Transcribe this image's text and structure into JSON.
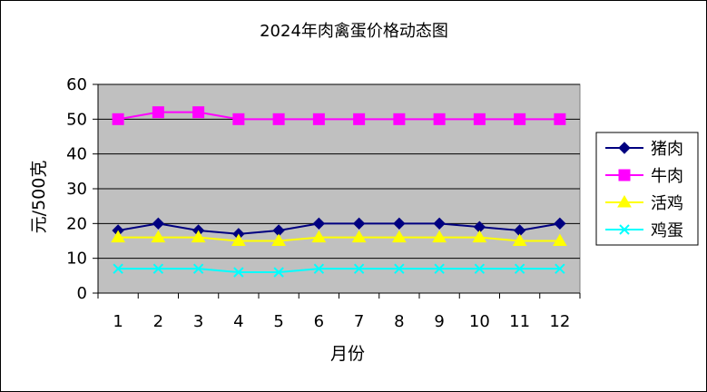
{
  "chart_data": {
    "type": "line",
    "title": "2024年肉禽蛋价格动态图",
    "xlabel": "月份",
    "ylabel": "元/500克",
    "categories": [
      "1",
      "2",
      "3",
      "4",
      "5",
      "6",
      "7",
      "8",
      "9",
      "10",
      "11",
      "12"
    ],
    "ylim": [
      0,
      60
    ],
    "yticks": [
      0,
      10,
      20,
      30,
      40,
      50,
      60
    ],
    "grid": true,
    "plot_background": "#C0C0C0",
    "legend_position": "right",
    "series": [
      {
        "name": "猪肉",
        "color": "#000080",
        "marker": "diamond",
        "values": [
          18,
          20,
          18,
          17,
          18,
          20,
          20,
          20,
          20,
          19,
          18,
          20
        ]
      },
      {
        "name": "牛肉",
        "color": "#FF00FF",
        "marker": "square",
        "values": [
          50,
          52,
          52,
          50,
          50,
          50,
          50,
          50,
          50,
          50,
          50,
          50
        ]
      },
      {
        "name": "活鸡",
        "color": "#FFFF00",
        "marker": "triangle",
        "values": [
          16,
          16,
          16,
          15,
          15,
          16,
          16,
          16,
          16,
          16,
          15,
          15
        ]
      },
      {
        "name": "鸡蛋",
        "color": "#00FFFF",
        "marker": "x",
        "values": [
          7,
          7,
          7,
          6,
          6,
          7,
          7,
          7,
          7,
          7,
          7,
          7
        ]
      }
    ]
  }
}
